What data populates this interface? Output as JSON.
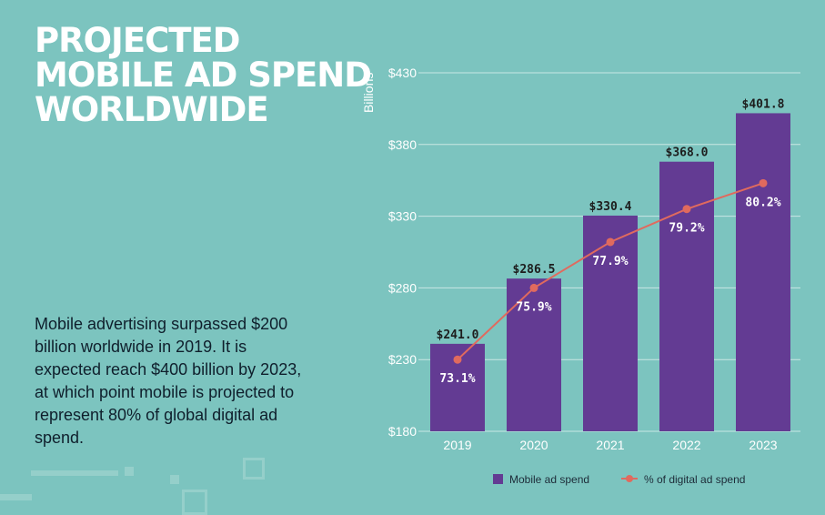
{
  "title_lines": [
    "PROJECTED",
    "MOBILE AD SPEND",
    "WORLDWIDE"
  ],
  "description": "Mobile advertising surpassed $200 billion worldwide in 2019. It is expected reach $400 billion by 2023, at which point mobile is projected to represent 80% of global digital ad spend.",
  "colors": {
    "background": "#7cc4bf",
    "bar": "#633b93",
    "line": "#e06a5e",
    "grid": "#c9e7e4"
  },
  "chart_data": {
    "type": "bar",
    "title": "PROJECTED MOBILE AD SPEND WORLDWIDE",
    "categories": [
      "2019",
      "2020",
      "2021",
      "2022",
      "2023"
    ],
    "ylabel": "Billions",
    "ylim": [
      180,
      430
    ],
    "yticks": [
      180,
      230,
      280,
      330,
      380,
      430
    ],
    "ytick_labels": [
      "$180",
      "$230",
      "$280",
      "$330",
      "$380",
      "$430"
    ],
    "series": [
      {
        "name": "Mobile ad spend",
        "type": "bar",
        "values": [
          241.0,
          286.5,
          330.4,
          368.0,
          401.8
        ],
        "labels": [
          "$241.0",
          "$286.5",
          "$330.4",
          "$368.0",
          "$401.8"
        ]
      },
      {
        "name": "% of digital ad spend",
        "type": "line",
        "values": [
          73.1,
          75.9,
          77.9,
          79.2,
          80.2
        ],
        "labels": [
          "73.1%",
          "75.9%",
          "77.9%",
          "79.2%",
          "80.2%"
        ],
        "plotted_on_ylim_values": [
          230,
          280,
          312,
          335,
          353
        ]
      }
    ],
    "legend": "bottom",
    "grid": true
  }
}
